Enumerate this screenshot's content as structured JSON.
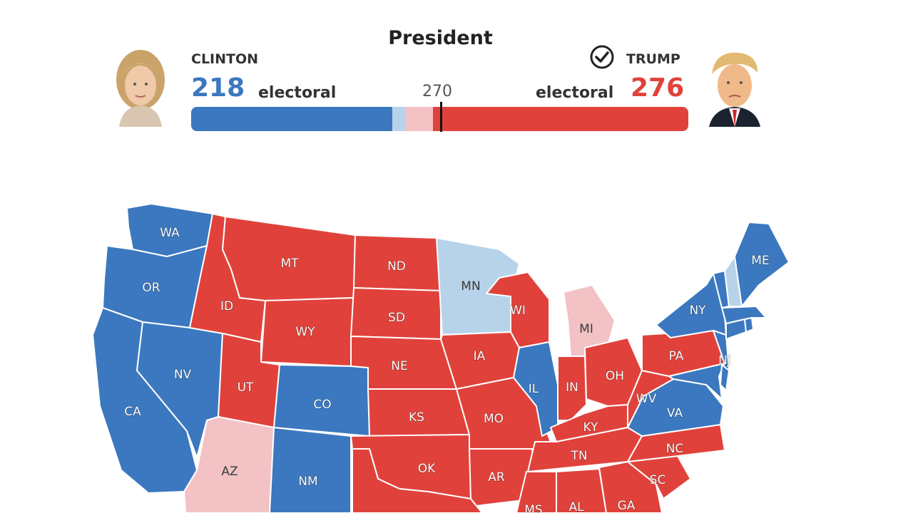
{
  "title": "President",
  "colors": {
    "dem": "#3b78bf",
    "lean_dem": "#b7d3ea",
    "rep": "#e0423b",
    "lean_rep": "#f2c2c5"
  },
  "clinton": {
    "name": "CLINTON",
    "votes": "218",
    "unit": "electoral",
    "avatar": "clinton-portrait"
  },
  "trump": {
    "name": "TRUMP",
    "votes": "276",
    "unit": "electoral",
    "avatar": "trump-portrait",
    "winner_icon": "check-circle-icon"
  },
  "bar": {
    "total": 538,
    "threshold_label": "270",
    "threshold": 270,
    "segments": [
      {
        "party": "dem",
        "votes": 218
      },
      {
        "party": "lean_dem",
        "votes": 14
      },
      {
        "party": "lean_rep",
        "votes": 30
      },
      {
        "party": "rep",
        "votes": 276
      }
    ]
  },
  "map": {
    "states": {
      "WA": {
        "label": "WA",
        "party": "dem"
      },
      "OR": {
        "label": "OR",
        "party": "dem"
      },
      "CA": {
        "label": "CA",
        "party": "dem"
      },
      "NV": {
        "label": "NV",
        "party": "dem"
      },
      "ID": {
        "label": "ID",
        "party": "rep"
      },
      "MT": {
        "label": "MT",
        "party": "rep"
      },
      "WY": {
        "label": "WY",
        "party": "rep"
      },
      "UT": {
        "label": "UT",
        "party": "rep"
      },
      "AZ": {
        "label": "AZ",
        "party": "lean_rep"
      },
      "CO": {
        "label": "CO",
        "party": "dem"
      },
      "NM": {
        "label": "NM",
        "party": "dem"
      },
      "ND": {
        "label": "ND",
        "party": "rep"
      },
      "SD": {
        "label": "SD",
        "party": "rep"
      },
      "NE": {
        "label": "NE",
        "party": "rep"
      },
      "KS": {
        "label": "KS",
        "party": "rep"
      },
      "OK": {
        "label": "OK",
        "party": "rep"
      },
      "TX": {
        "label": "",
        "party": "rep"
      },
      "MN": {
        "label": "MN",
        "party": "lean_dem"
      },
      "IA": {
        "label": "IA",
        "party": "rep"
      },
      "MO": {
        "label": "MO",
        "party": "rep"
      },
      "AR": {
        "label": "AR",
        "party": "rep"
      },
      "WI": {
        "label": "WI",
        "party": "rep"
      },
      "IL": {
        "label": "IL",
        "party": "dem"
      },
      "MI": {
        "label": "MI",
        "party": "lean_rep"
      },
      "IN": {
        "label": "IN",
        "party": "rep"
      },
      "OH": {
        "label": "OH",
        "party": "rep"
      },
      "KY": {
        "label": "KY",
        "party": "rep"
      },
      "TN": {
        "label": "TN",
        "party": "rep"
      },
      "MS": {
        "label": "MS",
        "party": "rep"
      },
      "AL": {
        "label": "AL",
        "party": "rep"
      },
      "GA": {
        "label": "GA",
        "party": "rep"
      },
      "SC": {
        "label": "SC",
        "party": "rep"
      },
      "NC": {
        "label": "NC",
        "party": "rep"
      },
      "VA": {
        "label": "VA",
        "party": "dem"
      },
      "WV": {
        "label": "WV",
        "party": "rep"
      },
      "PA": {
        "label": "PA",
        "party": "rep"
      },
      "NY": {
        "label": "NY",
        "party": "dem"
      },
      "NJ": {
        "label": "NJ",
        "party": "dem"
      },
      "MD": {
        "label": "",
        "party": "dem"
      },
      "DE": {
        "label": "",
        "party": "dem"
      },
      "CT": {
        "label": "",
        "party": "dem"
      },
      "RI": {
        "label": "",
        "party": "dem"
      },
      "MA": {
        "label": "",
        "party": "dem"
      },
      "VT": {
        "label": "",
        "party": "dem"
      },
      "NH": {
        "label": "",
        "party": "lean_dem"
      },
      "ME": {
        "label": "ME",
        "party": "dem"
      }
    }
  }
}
